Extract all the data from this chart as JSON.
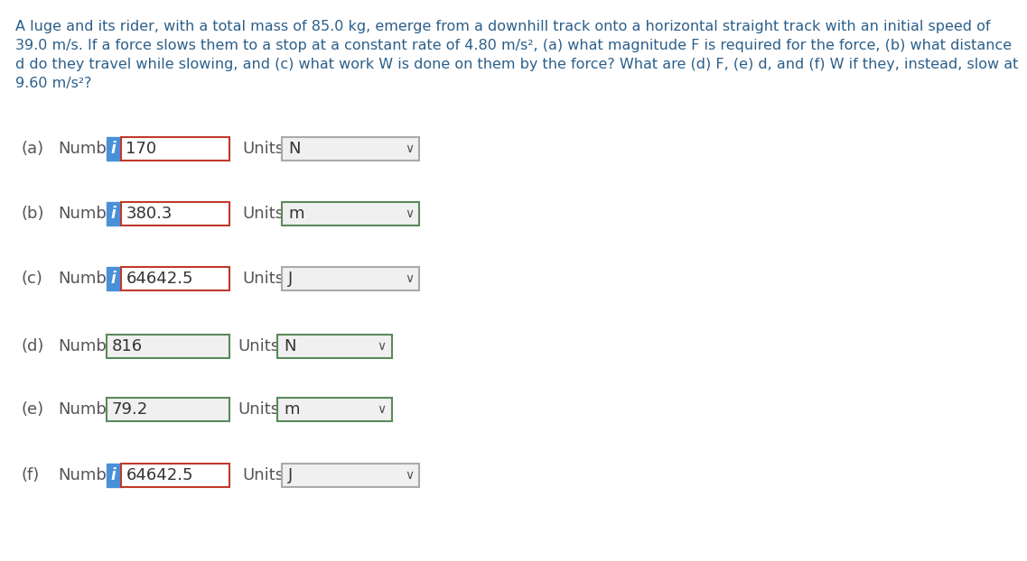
{
  "title_text": "A luge and its rider, with a total mass of 85.0 kg, emerge from a downhill track onto a horizontal straight track with an initial speed of\n39.0 m/s. If a force slows them to a stop at a constant rate of 4.80 m/s², (a) what magnitude F is required for the force, (b) what distance\nd do they travel while slowing, and (c) what work W is done on them by the force? What are (d) F, (e) d, and (f) W if they, instead, slow at\n9.60 m/s²?",
  "rows": [
    {
      "label": "a",
      "has_info": true,
      "value": "170",
      "units": "N",
      "units_border": "gray",
      "input_border": "red",
      "bg_white": true
    },
    {
      "label": "b",
      "has_info": true,
      "value": "380.3",
      "units": "m",
      "units_border": "green",
      "input_border": "red",
      "bg_white": true
    },
    {
      "label": "c",
      "has_info": true,
      "value": "64642.5",
      "units": "J",
      "units_border": "gray",
      "input_border": "red",
      "bg_white": true
    },
    {
      "label": "d",
      "has_info": false,
      "value": "816",
      "units": "N",
      "units_border": "green",
      "input_border": "green",
      "bg_white": false
    },
    {
      "label": "e",
      "has_info": false,
      "value": "79.2",
      "units": "m",
      "units_border": "green",
      "input_border": "green",
      "bg_white": false
    },
    {
      "label": "f",
      "has_info": true,
      "value": "64642.5",
      "units": "J",
      "units_border": "gray",
      "input_border": "red",
      "bg_white": true
    }
  ],
  "bg_color": "#ffffff",
  "title_color": "#2c5f8a",
  "label_color": "#555555",
  "info_btn_color": "#4a90d9",
  "info_btn_text": "i",
  "number_text": "Number",
  "units_text": "Units",
  "input_fill": "#ffffff",
  "input_fill_gray": "#f0f0f0",
  "border_red": "#c0392b",
  "border_green": "#5a8a5a",
  "border_gray": "#aaaaaa",
  "dropdown_arrow": "∨",
  "title_fontsize": 11.5,
  "label_fontsize": 13,
  "value_fontsize": 13,
  "units_fontsize": 13
}
